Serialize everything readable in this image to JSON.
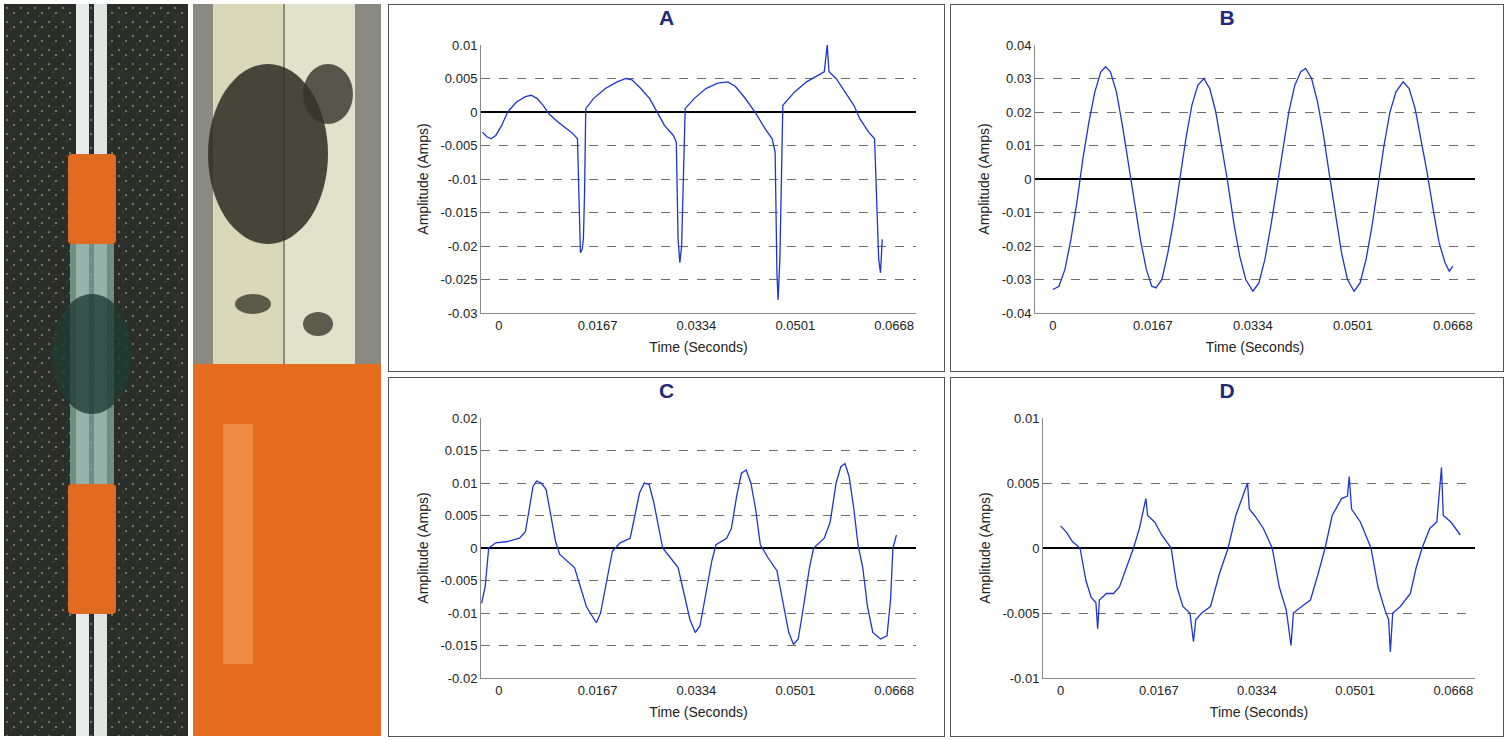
{
  "chart_data": [
    {
      "type": "line",
      "title": "A",
      "x_label": "Time (Seconds)",
      "y_label": "Amplitude (Amps)",
      "color": "#1f35d0",
      "grid": true,
      "xlim": [
        -0.003,
        0.0705
      ],
      "xticks": [
        0,
        0.0167,
        0.0334,
        0.0501,
        0.0668
      ],
      "ylim": [
        -0.03,
        0.01
      ],
      "yticks": [
        -0.03,
        -0.025,
        -0.02,
        -0.015,
        -0.01,
        -0.005,
        0,
        0.005,
        0.01
      ],
      "x": [
        -0.0028,
        -0.002,
        -0.0013,
        -0.0005,
        0.0005,
        0.0015,
        0.003,
        0.0045,
        0.0055,
        0.0065,
        0.0075,
        0.0085,
        0.01,
        0.0115,
        0.0125,
        0.0133,
        0.0136,
        0.0138,
        0.0141,
        0.0143,
        0.0145,
        0.0147,
        0.016,
        0.018,
        0.02,
        0.0215,
        0.0225,
        0.024,
        0.0255,
        0.0268,
        0.028,
        0.0295,
        0.03,
        0.0303,
        0.0306,
        0.0309,
        0.0312,
        0.0315,
        0.033,
        0.035,
        0.037,
        0.0387,
        0.04,
        0.0415,
        0.0433,
        0.045,
        0.0462,
        0.0467,
        0.047,
        0.0472,
        0.0475,
        0.0478,
        0.048,
        0.05,
        0.052,
        0.054,
        0.055,
        0.0555,
        0.0558,
        0.057,
        0.0585,
        0.06,
        0.061,
        0.0625,
        0.0635,
        0.064,
        0.0642,
        0.0645,
        0.0648
      ],
      "values": [
        -0.003,
        -0.0037,
        -0.004,
        -0.0035,
        -0.002,
        0,
        0.0015,
        0.0023,
        0.0025,
        0.002,
        0.001,
        -0.0003,
        -0.0015,
        -0.0025,
        -0.0032,
        -0.004,
        -0.015,
        -0.021,
        -0.0205,
        -0.019,
        -0.012,
        0.0005,
        0.002,
        0.0035,
        0.0045,
        0.005,
        0.0048,
        0.0035,
        0.002,
        0,
        -0.002,
        -0.0035,
        -0.0045,
        -0.019,
        -0.0225,
        -0.02,
        -0.01,
        0.0005,
        0.002,
        0.0035,
        0.0043,
        0.0045,
        0.0038,
        0.0022,
        0,
        -0.0025,
        -0.004,
        -0.006,
        -0.024,
        -0.028,
        -0.022,
        -0.01,
        0.001,
        0.003,
        0.0045,
        0.0055,
        0.006,
        0.01,
        0.006,
        0.005,
        0.003,
        0.001,
        -0.001,
        -0.003,
        -0.004,
        -0.018,
        -0.022,
        -0.024,
        -0.019
      ]
    },
    {
      "type": "line",
      "title": "B",
      "x_label": "Time (Seconds)",
      "y_label": "Amplitude (Amps)",
      "color": "#1f35d0",
      "grid": true,
      "xlim": [
        -0.003,
        0.0705
      ],
      "xticks": [
        0,
        0.0167,
        0.0334,
        0.0501,
        0.0668
      ],
      "ylim": [
        -0.04,
        0.04
      ],
      "yticks": [
        -0.04,
        -0.03,
        -0.02,
        -0.01,
        0,
        0.01,
        0.02,
        0.03,
        0.04
      ],
      "x": [
        0,
        0.001,
        0.002,
        0.003,
        0.004,
        0.005,
        0.006,
        0.007,
        0.008,
        0.0088,
        0.0096,
        0.0106,
        0.0116,
        0.0126,
        0.0136,
        0.0146,
        0.0156,
        0.0165,
        0.0172,
        0.0182,
        0.0192,
        0.0202,
        0.0212,
        0.0222,
        0.0232,
        0.0242,
        0.0252,
        0.0262,
        0.0272,
        0.0282,
        0.0292,
        0.0302,
        0.0312,
        0.0322,
        0.0334,
        0.0344,
        0.0354,
        0.0364,
        0.0374,
        0.0384,
        0.0394,
        0.0404,
        0.0414,
        0.0422,
        0.0432,
        0.0442,
        0.0452,
        0.0462,
        0.0472,
        0.0482,
        0.0492,
        0.0503,
        0.0513,
        0.0523,
        0.0533,
        0.0543,
        0.0553,
        0.0563,
        0.0573,
        0.0585,
        0.0595,
        0.0605,
        0.0615,
        0.0625,
        0.0635,
        0.0645,
        0.0655,
        0.0662,
        0.0668
      ],
      "values": [
        -0.033,
        -0.032,
        -0.027,
        -0.018,
        -0.007,
        0.006,
        0.017,
        0.026,
        0.032,
        0.0335,
        0.032,
        0.026,
        0.016,
        0.005,
        -0.007,
        -0.018,
        -0.027,
        -0.032,
        -0.0325,
        -0.03,
        -0.022,
        -0.012,
        0,
        0.012,
        0.022,
        0.028,
        0.03,
        0.027,
        0.02,
        0.01,
        -0.001,
        -0.013,
        -0.023,
        -0.03,
        -0.0335,
        -0.031,
        -0.024,
        -0.014,
        -0.003,
        0.009,
        0.02,
        0.028,
        0.032,
        0.033,
        0.03,
        0.023,
        0.013,
        0.001,
        -0.011,
        -0.022,
        -0.03,
        -0.0335,
        -0.031,
        -0.024,
        -0.014,
        -0.002,
        0.01,
        0.02,
        0.026,
        0.029,
        0.027,
        0.021,
        0.012,
        0.002,
        -0.009,
        -0.019,
        -0.025,
        -0.0275,
        -0.026
      ]
    },
    {
      "type": "line",
      "title": "C",
      "x_label": "Time (Seconds)",
      "y_label": "Amplitude (Amps)",
      "color": "#1f35d0",
      "grid": true,
      "xlim": [
        -0.003,
        0.0705
      ],
      "xticks": [
        0,
        0.0167,
        0.0334,
        0.0501,
        0.0668
      ],
      "ylim": [
        -0.02,
        0.02
      ],
      "yticks": [
        -0.02,
        -0.015,
        -0.01,
        -0.005,
        0,
        0.005,
        0.01,
        0.015,
        0.02
      ],
      "x": [
        -0.0029,
        -0.0023,
        -0.0017,
        -0.0005,
        0.0015,
        0.0035,
        0.0045,
        0.0052,
        0.0058,
        0.0064,
        0.0072,
        0.008,
        0.0088,
        0.0096,
        0.0103,
        0.0115,
        0.0128,
        0.0138,
        0.0148,
        0.0158,
        0.0165,
        0.0172,
        0.0182,
        0.0192,
        0.0205,
        0.0222,
        0.023,
        0.0238,
        0.0246,
        0.0254,
        0.0262,
        0.027,
        0.0277,
        0.029,
        0.0303,
        0.0313,
        0.0323,
        0.0332,
        0.034,
        0.035,
        0.036,
        0.0367,
        0.0385,
        0.0393,
        0.0402,
        0.041,
        0.0418,
        0.0426,
        0.0434,
        0.0442,
        0.0455,
        0.047,
        0.048,
        0.049,
        0.0498,
        0.0506,
        0.0515,
        0.0525,
        0.0532,
        0.055,
        0.056,
        0.057,
        0.0578,
        0.0585,
        0.0592,
        0.06,
        0.0607,
        0.0615,
        0.0623,
        0.0632,
        0.0645,
        0.0656,
        0.0662,
        0.0666,
        0.0672
      ],
      "values": [
        -0.0085,
        -0.006,
        0,
        0.0008,
        0.001,
        0.0015,
        0.0025,
        0.006,
        0.0095,
        0.0103,
        0.01,
        0.009,
        0.005,
        0.001,
        -0.001,
        -0.002,
        -0.003,
        -0.006,
        -0.009,
        -0.0105,
        -0.0115,
        -0.01,
        -0.005,
        -0.0005,
        0.0008,
        0.0015,
        0.005,
        0.0085,
        0.01,
        0.0098,
        0.007,
        0.003,
        0,
        -0.0015,
        -0.003,
        -0.007,
        -0.011,
        -0.013,
        -0.012,
        -0.007,
        -0.002,
        0.0005,
        0.0015,
        0.003,
        0.008,
        0.0115,
        0.012,
        0.01,
        0.006,
        0.0005,
        -0.0015,
        -0.0035,
        -0.008,
        -0.013,
        -0.0148,
        -0.014,
        -0.009,
        -0.003,
        0,
        0.0015,
        0.004,
        0.01,
        0.0125,
        0.013,
        0.011,
        0.006,
        0.0005,
        -0.003,
        -0.009,
        -0.013,
        -0.014,
        -0.0135,
        -0.008,
        0,
        0.002
      ]
    },
    {
      "type": "line",
      "title": "D",
      "x_label": "Time (Seconds)",
      "y_label": "Amplitude (Amps)",
      "color": "#1f35d0",
      "grid": true,
      "xlim": [
        -0.003,
        0.0705
      ],
      "xticks": [
        0,
        0.0167,
        0.0334,
        0.0501,
        0.0668
      ],
      "ylim": [
        -0.01,
        0.01
      ],
      "yticks": [
        -0.01,
        -0.005,
        0,
        0.005,
        0.01
      ],
      "x": [
        0,
        0.001,
        0.002,
        0.0033,
        0.0043,
        0.0052,
        0.006,
        0.0063,
        0.0066,
        0.0078,
        0.009,
        0.01,
        0.0112,
        0.0124,
        0.0134,
        0.0142,
        0.0145,
        0.0148,
        0.016,
        0.0172,
        0.0188,
        0.0198,
        0.0208,
        0.022,
        0.0226,
        0.023,
        0.024,
        0.0255,
        0.027,
        0.0285,
        0.0298,
        0.031,
        0.0318,
        0.0321,
        0.033,
        0.0345,
        0.036,
        0.0372,
        0.0384,
        0.0392,
        0.0396,
        0.041,
        0.0425,
        0.0438,
        0.045,
        0.0462,
        0.0478,
        0.0488,
        0.0491,
        0.0495,
        0.051,
        0.0528,
        0.054,
        0.0552,
        0.0558,
        0.0561,
        0.0565,
        0.0578,
        0.0595,
        0.0605,
        0.0615,
        0.0628,
        0.064,
        0.0648,
        0.0651,
        0.0664,
        0.068
      ],
      "values": [
        0.0017,
        0.0012,
        0.0005,
        0,
        -0.0025,
        -0.0038,
        -0.0042,
        -0.0062,
        -0.004,
        -0.0035,
        -0.0035,
        -0.003,
        -0.0015,
        0,
        0.0015,
        0.003,
        0.0038,
        0.0025,
        0.002,
        0.001,
        0,
        -0.003,
        -0.0045,
        -0.005,
        -0.0072,
        -0.0055,
        -0.005,
        -0.0045,
        -0.002,
        0,
        0.0025,
        0.004,
        0.005,
        0.003,
        0.0025,
        0.0015,
        0,
        -0.003,
        -0.0048,
        -0.0075,
        -0.005,
        -0.0045,
        -0.004,
        -0.002,
        0,
        0.0025,
        0.0038,
        0.004,
        0.0055,
        0.003,
        0.002,
        0,
        -0.003,
        -0.0048,
        -0.0055,
        -0.008,
        -0.005,
        -0.0045,
        -0.0035,
        -0.0015,
        0,
        0.0015,
        0.002,
        0.0062,
        0.0025,
        0.002,
        0.001
      ]
    }
  ]
}
